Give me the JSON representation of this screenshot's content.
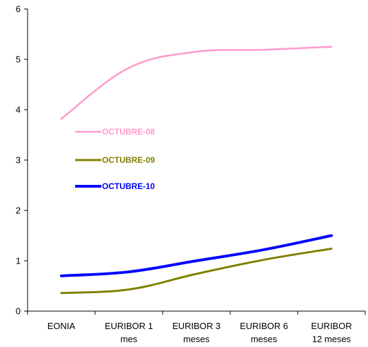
{
  "chart_data": {
    "type": "line",
    "categories": [
      [
        "EONIA"
      ],
      [
        "EURIBOR 1",
        "mes"
      ],
      [
        "EURIBOR 3",
        "meses"
      ],
      [
        "EURIBOR 6",
        "meses"
      ],
      [
        "EURIBOR",
        "12 meses"
      ]
    ],
    "ylim": [
      0,
      6
    ],
    "yticks": [
      0,
      1,
      2,
      3,
      4,
      5,
      6
    ],
    "grid": false,
    "legend_position": "left",
    "series": [
      {
        "name": "OCTUBRE-08",
        "color": "#FF99CC",
        "values": [
          3.82,
          4.83,
          5.15,
          5.19,
          5.25
        ]
      },
      {
        "name": "OCTUBRE-09",
        "color": "#808000",
        "values": [
          0.36,
          0.43,
          0.74,
          1.02,
          1.24
        ]
      },
      {
        "name": "OCTUBRE-10",
        "color": "#0000FF",
        "values": [
          0.7,
          0.78,
          1.0,
          1.22,
          1.5
        ]
      }
    ]
  }
}
